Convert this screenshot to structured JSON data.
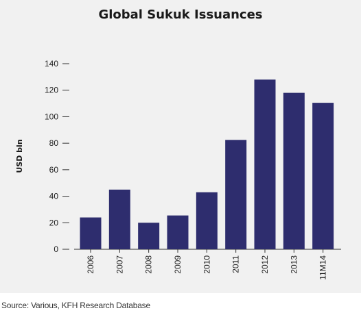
{
  "chart_data": {
    "type": "bar",
    "title": "Global Sukuk Issuances",
    "ylabel": "USD bln",
    "xlabel": "",
    "categories": [
      "2006",
      "2007",
      "2008",
      "2009",
      "2010",
      "2011",
      "2012",
      "2013",
      "11M14"
    ],
    "values": [
      24,
      45,
      20,
      25.5,
      43,
      82.5,
      128,
      118,
      110.5
    ],
    "ylim": [
      0,
      140
    ],
    "yticks": [
      0,
      20,
      40,
      60,
      80,
      100,
      120,
      140
    ],
    "grid": false,
    "legend": "none",
    "bar_color": "#2e2d6e"
  },
  "source": "Source: Various, KFH Research Database"
}
